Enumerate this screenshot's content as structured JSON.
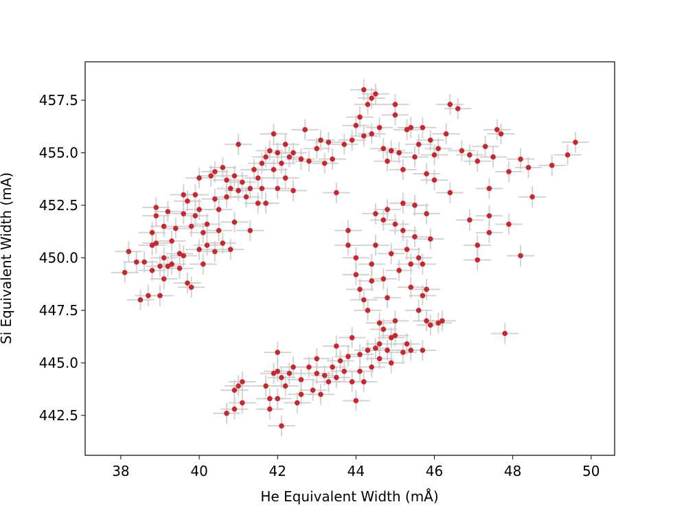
{
  "chart_data": {
    "type": "scatter",
    "x_label": "He Equivalent Width (mÅ)",
    "y_label": "Si Equivalent Width (mA)",
    "xlim": [
      37.09,
      50.6
    ],
    "ylim": [
      440.6,
      459.33
    ],
    "xticks": [
      38,
      40,
      42,
      44,
      46,
      48,
      50
    ],
    "yticks": [
      442.5,
      {
        "value": 445,
        "label": "445.0"
      },
      447.5,
      {
        "value": 450,
        "label": "450.0"
      },
      452.5,
      {
        "value": 455,
        "label": "455.0"
      },
      457.5
    ],
    "errorbar_color": "#c8c8c8",
    "series": [
      {
        "color": "#c8282d",
        "xerr": 0.35,
        "yerr": 0.5,
        "x": [
          38.1,
          38.2,
          38.4,
          38.5,
          38.6,
          38.7,
          38.8,
          38.8,
          38.8,
          38.9,
          38.9,
          38.9,
          39.0,
          39.0,
          39.1,
          39.1,
          39.1,
          39.2,
          39.2,
          39.3,
          39.3,
          39.4,
          39.5,
          39.5,
          39.6,
          39.6,
          39.6,
          39.7,
          39.7,
          39.8,
          39.8,
          39.9,
          39.9,
          40.0,
          40.0,
          40.0,
          40.1,
          40.1,
          40.2,
          40.2,
          40.3,
          40.4,
          40.4,
          40.4,
          40.5,
          40.5,
          40.6,
          40.6,
          40.7,
          40.7,
          40.8,
          40.8,
          40.9,
          40.9,
          41.0,
          41.0,
          41.1,
          41.2,
          41.3,
          41.3,
          41.4,
          41.5,
          41.5,
          41.6,
          41.6,
          41.7,
          41.7,
          41.8,
          41.9,
          41.9,
          42.0,
          42.0,
          42.1,
          42.2,
          42.2,
          42.3,
          42.4,
          42.4,
          42.6,
          42.7,
          42.8,
          43.0,
          43.1,
          43.2,
          43.3,
          43.4,
          43.5,
          43.7,
          43.9,
          44.0,
          44.1,
          44.2,
          44.2,
          44.3,
          44.4,
          44.4,
          44.5,
          44.6,
          44.7,
          44.8,
          44.9,
          45.0,
          45.0,
          45.1,
          45.2,
          45.3,
          45.4,
          45.5,
          45.6,
          45.7,
          45.8,
          45.9,
          46.0,
          46.0,
          46.1,
          46.3,
          46.4,
          46.6,
          46.7,
          46.9,
          47.1,
          47.3,
          47.4,
          47.5,
          47.6,
          47.7,
          47.9,
          48.2,
          48.4,
          48.5,
          49.0,
          49.4,
          49.6,
          48.2,
          47.8,
          47.9,
          47.4,
          47.4,
          47.1,
          47.1,
          46.9,
          46.4,
          46.2,
          45.9,
          43.8,
          43.8,
          44.0,
          44.0,
          44.1,
          44.2,
          44.3,
          44.4,
          44.4,
          44.5,
          44.5,
          44.6,
          44.7,
          44.7,
          44.8,
          44.8,
          44.9,
          45.0,
          45.0,
          45.1,
          45.2,
          45.2,
          45.3,
          45.4,
          45.4,
          45.5,
          45.5,
          45.6,
          45.6,
          45.7,
          45.7,
          45.8,
          45.8,
          45.9,
          44.9,
          44.6,
          45.3,
          40.7,
          40.9,
          40.9,
          41.0,
          41.1,
          41.1,
          41.7,
          41.8,
          41.8,
          41.9,
          42.0,
          42.0,
          42.0,
          42.1,
          42.1,
          42.2,
          42.3,
          42.4,
          42.5,
          42.6,
          42.6,
          42.8,
          42.9,
          43.0,
          43.0,
          43.1,
          43.2,
          43.3,
          43.4,
          43.5,
          43.5,
          43.6,
          43.7,
          43.8,
          43.9,
          43.9,
          44.0,
          44.1,
          44.1,
          44.2,
          44.3,
          44.4,
          44.5,
          44.6,
          44.7,
          44.8,
          44.9,
          45.0,
          45.2,
          45.4,
          45.7,
          45.8,
          46.1
        ],
        "y": [
          449.3,
          450.3,
          449.8,
          448,
          449.8,
          448.2,
          449.4,
          450.6,
          451.2,
          452.4,
          452,
          450.7,
          448.2,
          449.6,
          451.5,
          449,
          450,
          452.2,
          449.6,
          450.8,
          449.7,
          451.4,
          450.2,
          449.5,
          450.1,
          452.1,
          453,
          452.7,
          448.8,
          448.6,
          451.5,
          453,
          452,
          450.4,
          453.8,
          452.3,
          449.7,
          451.2,
          450.6,
          451.6,
          453.9,
          452.8,
          450.3,
          454.1,
          452.3,
          451.3,
          454.3,
          450.7,
          453.7,
          452.9,
          453.3,
          450.4,
          451.7,
          453.9,
          453.2,
          455.4,
          453.6,
          452.9,
          451.3,
          453.3,
          454.2,
          452.6,
          453.8,
          454.5,
          453.3,
          452.6,
          454.8,
          455.1,
          455.9,
          454.2,
          453.3,
          455,
          454.5,
          455.4,
          453.8,
          454.8,
          455,
          453.2,
          454.7,
          456.1,
          454.6,
          455.2,
          455.6,
          454.5,
          455.5,
          454.7,
          453.1,
          455.4,
          455.6,
          456.3,
          456.7,
          455.8,
          458,
          457.3,
          457.6,
          455.9,
          457.8,
          456.2,
          455.2,
          454.6,
          455.1,
          456.8,
          457.3,
          455,
          454.2,
          456.1,
          456.2,
          454.8,
          455.4,
          456.2,
          454,
          455.6,
          454.9,
          453.7,
          455.2,
          455.9,
          457.3,
          457.1,
          455.1,
          454.9,
          454.6,
          455.3,
          453.3,
          454.8,
          456.1,
          455.9,
          454.1,
          454.7,
          454.3,
          452.9,
          454.4,
          454.9,
          455.5,
          450.1,
          446.4,
          451.6,
          452,
          451.2,
          450.6,
          449.9,
          451.8,
          453.1,
          447,
          450.9,
          451.3,
          450.6,
          450,
          449.2,
          448.5,
          448,
          447.5,
          448.9,
          449.7,
          450.6,
          452.1,
          446.9,
          451.8,
          449,
          452.3,
          448.1,
          450.2,
          451.6,
          447,
          449.4,
          451.3,
          452.6,
          450.4,
          448.6,
          449.7,
          452.5,
          451,
          450,
          447.5,
          448.2,
          449.7,
          452.1,
          448.5,
          446.8,
          446.2,
          445.9,
          445.9,
          442.6,
          442.8,
          443.7,
          443.9,
          444.1,
          443.1,
          443.9,
          443.3,
          442.8,
          444.5,
          445.5,
          444.6,
          443.3,
          442,
          444.3,
          443.9,
          444.5,
          444.8,
          443.1,
          444.2,
          443.5,
          444.8,
          443.7,
          444.5,
          445.2,
          443.5,
          444.4,
          444.1,
          444.8,
          444.3,
          445.8,
          445.1,
          444.6,
          445.3,
          444.1,
          446.2,
          443.2,
          445.4,
          444.6,
          444.1,
          445.6,
          444.8,
          445.7,
          445.2,
          446.6,
          445.6,
          445,
          446.3,
          445.5,
          445.6,
          445.6,
          447,
          446.9
        ]
      }
    ]
  }
}
